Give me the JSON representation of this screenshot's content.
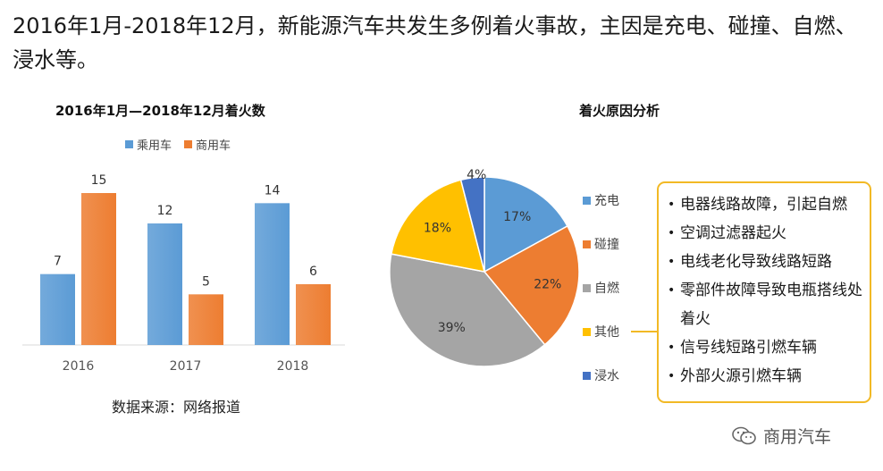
{
  "headline": "2016年1月-2018年12月，新能源汽车共发生多例着火事故，主因是充电、碰撞、自燃、浸水等。",
  "source_note": "数据来源：网络报道",
  "watermark": "商用汽车",
  "callout": {
    "items": [
      "电器线路故障，引起自燃",
      "空调过滤器起火",
      "电线老化导致线路短路",
      "零部件故障导致电瓶搭线处着火",
      "信号线短路引燃车辆",
      "外部火源引燃车辆"
    ]
  },
  "chart_data": [
    {
      "type": "bar",
      "title": "2016年1月—2018年12月着火数",
      "categories": [
        "2016",
        "2017",
        "2018"
      ],
      "series": [
        {
          "name": "乘用车",
          "values": [
            7,
            12,
            14
          ],
          "color": "#5b9bd5"
        },
        {
          "name": "商用车",
          "values": [
            15,
            5,
            6
          ],
          "color": "#ed7d31"
        }
      ],
      "ylim": [
        0,
        15
      ],
      "grid": false,
      "legend": "top"
    },
    {
      "type": "pie",
      "title": "着火原因分析",
      "slices": [
        {
          "label": "充电",
          "value": 17,
          "color": "#5b9bd5"
        },
        {
          "label": "碰撞",
          "value": 22,
          "color": "#ed7d31"
        },
        {
          "label": "自燃",
          "value": 39,
          "color": "#a5a5a5"
        },
        {
          "label": "其他",
          "value": 18,
          "color": "#ffc000"
        },
        {
          "label": "浸水",
          "value": 4,
          "color": "#4472c4"
        }
      ],
      "legend": "right"
    }
  ]
}
